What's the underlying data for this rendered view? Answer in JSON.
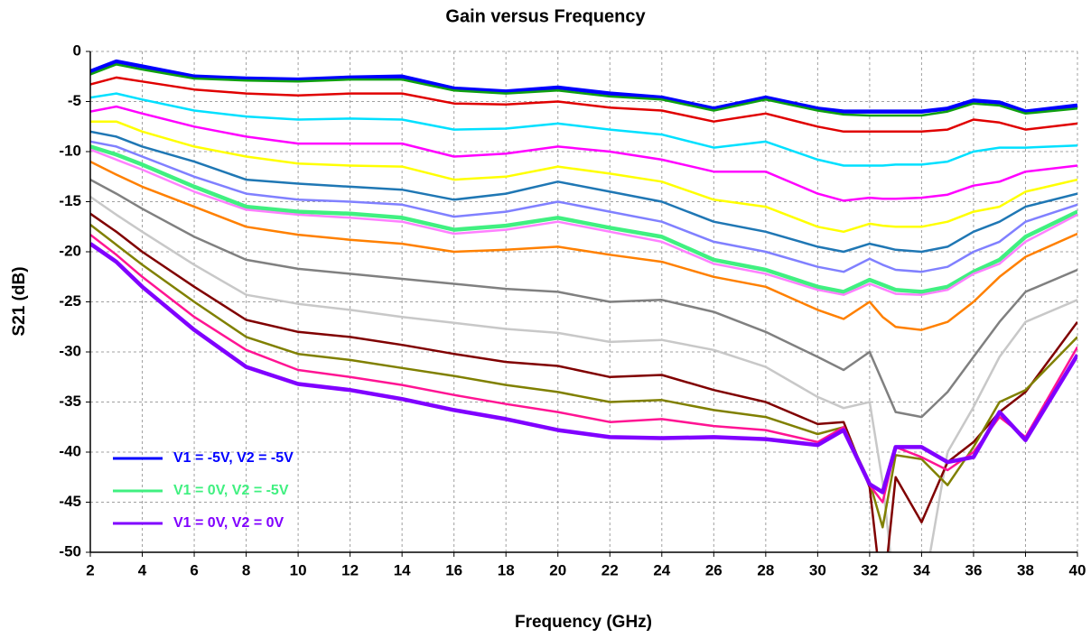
{
  "chart_data": {
    "type": "line",
    "title": "Gain versus Frequency",
    "x_label": "Frequency (GHz)",
    "y_label": "S21 (dB)",
    "x": [
      2,
      3,
      4,
      6,
      8,
      10,
      12,
      14,
      16,
      18,
      20,
      22,
      24,
      26,
      28,
      30,
      31,
      32,
      32.5,
      33,
      34,
      35,
      36,
      37,
      38,
      40
    ],
    "xlim": [
      2,
      40
    ],
    "xticks": [
      2,
      4,
      6,
      8,
      10,
      12,
      14,
      16,
      18,
      20,
      22,
      24,
      26,
      28,
      30,
      32,
      34,
      36,
      38,
      40
    ],
    "ylim": [
      -50,
      0
    ],
    "yticks": [
      0,
      -5,
      -10,
      -15,
      -20,
      -25,
      -30,
      -35,
      -40,
      -45,
      -50
    ],
    "grid": true,
    "legend": "lower left",
    "series": [
      {
        "name": "V1 = -5V, V2 = -5V",
        "color": "#0000ff",
        "values": [
          -2,
          -1,
          -1.5,
          -2.5,
          -2.7,
          -2.8,
          -2.6,
          -2.5,
          -3.7,
          -4,
          -3.6,
          -4.2,
          -4.6,
          -5.7,
          -4.6,
          -5.7,
          -6,
          -6,
          -6,
          -6,
          -6,
          -5.7,
          -4.9,
          -5.1,
          -6,
          -5.4
        ]
      },
      {
        "color": "#10a010",
        "values": [
          -2.3,
          -1.3,
          -1.8,
          -2.7,
          -2.9,
          -3,
          -2.8,
          -2.8,
          -3.9,
          -4.2,
          -3.9,
          -4.5,
          -4.8,
          -5.9,
          -4.8,
          -5.9,
          -6.3,
          -6.4,
          -6.4,
          -6.4,
          -6.4,
          -6,
          -5.2,
          -5.4,
          -6.2,
          -5.7
        ]
      },
      {
        "color": "#e00000",
        "values": [
          -3.3,
          -2.6,
          -3,
          -3.8,
          -4.2,
          -4.4,
          -4.2,
          -4.2,
          -5.2,
          -5.3,
          -5,
          -5.6,
          -5.9,
          -7,
          -6.2,
          -7.5,
          -8,
          -8,
          -8,
          -8,
          -8,
          -7.8,
          -6.8,
          -7.1,
          -7.8,
          -7.2
        ]
      },
      {
        "color": "#00e0ff",
        "values": [
          -4.6,
          -4.2,
          -4.8,
          -5.9,
          -6.5,
          -6.8,
          -6.7,
          -6.8,
          -7.8,
          -7.7,
          -7.2,
          -7.8,
          -8.3,
          -9.6,
          -9,
          -10.8,
          -11.4,
          -11.4,
          -11.4,
          -11.3,
          -11.3,
          -11,
          -10,
          -9.6,
          -9.6,
          -9.4
        ]
      },
      {
        "color": "#ff00ff",
        "values": [
          -6,
          -5.5,
          -6.2,
          -7.5,
          -8.5,
          -9.2,
          -9.2,
          -9.2,
          -10.5,
          -10.2,
          -9.5,
          -10,
          -10.8,
          -12,
          -12,
          -14.2,
          -14.9,
          -14.6,
          -14.7,
          -14.7,
          -14.6,
          -14.3,
          -13.4,
          -13,
          -12,
          -11.4
        ]
      },
      {
        "color": "#ffff00",
        "values": [
          -7,
          -7,
          -8,
          -9.5,
          -10.5,
          -11.2,
          -11.4,
          -11.5,
          -12.8,
          -12.5,
          -11.5,
          -12.2,
          -13,
          -14.8,
          -15.5,
          -17.5,
          -18,
          -17.2,
          -17.4,
          -17.5,
          -17.5,
          -17,
          -16,
          -15.5,
          -14,
          -12.8
        ]
      },
      {
        "color": "#1f77b4",
        "values": [
          -8,
          -8.5,
          -9.5,
          -11,
          -12.8,
          -13.2,
          -13.5,
          -13.8,
          -14.8,
          -14.2,
          -13,
          -14,
          -15,
          -17,
          -18,
          -19.5,
          -20,
          -19.2,
          -19.5,
          -19.8,
          -20,
          -19.5,
          -18,
          -17,
          -15.5,
          -14.2
        ]
      },
      {
        "color": "#8080ff",
        "values": [
          -9,
          -9.5,
          -10.5,
          -12.5,
          -14.2,
          -14.8,
          -15,
          -15.3,
          -16.5,
          -16,
          -15,
          -16,
          -17,
          -19,
          -20,
          -21.5,
          -22,
          -20.7,
          -21.3,
          -21.8,
          -22,
          -21.5,
          -20,
          -19,
          -17,
          -15.3
        ]
      },
      {
        "name": "V1 = 0V, V2 = -5V",
        "color": "#40f080",
        "values": [
          -9.5,
          -10.3,
          -11.3,
          -13.5,
          -15.5,
          -16,
          -16.2,
          -16.6,
          -17.8,
          -17.4,
          -16.6,
          -17.6,
          -18.5,
          -20.8,
          -21.8,
          -23.5,
          -24,
          -22.8,
          -23.3,
          -23.8,
          -24,
          -23.5,
          -22,
          -20.8,
          -18.5,
          -16
        ]
      },
      {
        "color": "#ff80ff",
        "values": [
          -9.8,
          -10.8,
          -11.8,
          -14,
          -15.8,
          -16.3,
          -16.6,
          -17,
          -18.2,
          -17.8,
          -17,
          -18,
          -19,
          -21.2,
          -22.2,
          -23.8,
          -24.3,
          -23.2,
          -23.7,
          -24.2,
          -24.3,
          -23.8,
          -22.2,
          -21.2,
          -19,
          -16.3
        ]
      },
      {
        "color": "#ff8000",
        "values": [
          -11,
          -12.3,
          -13.5,
          -15.5,
          -17.5,
          -18.3,
          -18.8,
          -19.2,
          -20,
          -19.8,
          -19.5,
          -20.3,
          -21,
          -22.5,
          -23.5,
          -25.8,
          -26.7,
          -25,
          -26.5,
          -27.5,
          -27.8,
          -27,
          -25,
          -22.5,
          -20.5,
          -18.2
        ]
      },
      {
        "color": "#808080",
        "values": [
          -12.8,
          -14.2,
          -15.7,
          -18.5,
          -20.8,
          -21.7,
          -22.2,
          -22.7,
          -23.2,
          -23.7,
          -24,
          -25,
          -24.8,
          -26,
          -28,
          -30.5,
          -31.8,
          -30,
          -33,
          -36,
          -36.5,
          -34,
          -30.5,
          -27,
          -24,
          -21.8
        ]
      },
      {
        "color": "#c8c8c8",
        "values": [
          -14.5,
          -16.3,
          -18,
          -21.3,
          -24.3,
          -25.2,
          -25.8,
          -26.5,
          -27.1,
          -27.7,
          -28.1,
          -29,
          -28.8,
          -29.8,
          -31.5,
          -34.5,
          -35.6,
          -35,
          -43,
          -55,
          -55,
          -40,
          -35.5,
          -30.5,
          -27,
          -24.8
        ]
      },
      {
        "color": "#800000",
        "values": [
          -16.2,
          -18,
          -20,
          -23.5,
          -26.8,
          -28,
          -28.5,
          -29.3,
          -30.2,
          -31,
          -31.4,
          -32.5,
          -32.3,
          -33.8,
          -35,
          -37.2,
          -37,
          -43.5,
          -55,
          -42.5,
          -47,
          -41,
          -39,
          -36,
          -34,
          -27
        ]
      },
      {
        "color": "#808000",
        "values": [
          -17.3,
          -19.3,
          -21.3,
          -25,
          -28.5,
          -30.2,
          -30.8,
          -31.6,
          -32.4,
          -33.3,
          -34,
          -35,
          -34.8,
          -35.8,
          -36.5,
          -38.2,
          -37.5,
          -43,
          -47.5,
          -40.3,
          -40.7,
          -43.3,
          -39.5,
          -35,
          -33.8,
          -28.5
        ]
      },
      {
        "color": "#ff1493",
        "values": [
          -18.3,
          -20.3,
          -22.5,
          -26.5,
          -29.8,
          -31.8,
          -32.5,
          -33.3,
          -34.3,
          -35.2,
          -36,
          -37,
          -36.7,
          -37.4,
          -37.8,
          -39,
          -37.5,
          -43.3,
          -45,
          -39.5,
          -40.5,
          -41.8,
          -40,
          -36.5,
          -38.5,
          -29.5
        ]
      },
      {
        "name": "V1 = 0V, V2 = 0V",
        "color": "#8000ff",
        "values": [
          -19.2,
          -21,
          -23.5,
          -27.8,
          -31.5,
          -33.2,
          -33.8,
          -34.7,
          -35.8,
          -36.7,
          -37.8,
          -38.5,
          -38.6,
          -38.5,
          -38.7,
          -39.3,
          -37.8,
          -43.2,
          -44,
          -39.5,
          -39.5,
          -41,
          -40.5,
          -36,
          -38.8,
          -30.3
        ]
      }
    ]
  }
}
